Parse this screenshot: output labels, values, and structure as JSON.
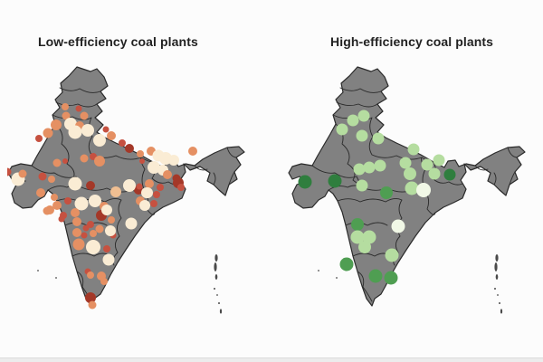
{
  "page": {
    "background_color": "#fcfcfc",
    "footer_strip_color": "#ececec"
  },
  "map_style": {
    "land_fill": "#818181",
    "border_color": "#2a2a2a",
    "region": "India with state boundaries, Andaman & Nicobar and Lakshadweep islands"
  },
  "palette": {
    "dr": "#a43828",
    "rd": "#c65140",
    "or": "#e59063",
    "pe": "#f0bf92",
    "cr": "#faecd4",
    "dg": "#2f7e3e",
    "mg": "#4f9e52",
    "lg": "#b5dda0",
    "wg": "#f1f8e6"
  },
  "chart_data": {
    "type": "scatter",
    "subtype": "geographic-bubble-map",
    "region": "India",
    "legend": "none shown",
    "coordinate_note": "points are [x, y, radius, paletteKey] in each map's 290x320 local pixel space",
    "panels": [
      {
        "id": "low",
        "title": "Low-efficiency coal plants",
        "color_scale": "cream (low) to dark red (high), OrRd-style",
        "points": [
          [
            64,
            45,
            4,
            "or"
          ],
          [
            79,
            47,
            3.5,
            "rd"
          ],
          [
            65,
            55,
            4.5,
            "or"
          ],
          [
            85,
            55,
            4.5,
            "or"
          ],
          [
            54,
            65,
            6,
            "or"
          ],
          [
            70,
            64,
            7,
            "cr"
          ],
          [
            80,
            66,
            5,
            "or"
          ],
          [
            45,
            74,
            5.5,
            "or"
          ],
          [
            75,
            73,
            7.5,
            "cr"
          ],
          [
            89,
            71,
            7,
            "cr"
          ],
          [
            109,
            70,
            3.5,
            "rd"
          ],
          [
            115,
            77,
            5,
            "or"
          ],
          [
            35,
            80,
            4,
            "rd"
          ],
          [
            102,
            82,
            7,
            "cr"
          ],
          [
            127,
            85,
            4,
            "rd"
          ],
          [
            135,
            91,
            5,
            "dr"
          ],
          [
            147,
            97,
            4,
            "or"
          ],
          [
            159,
            94,
            5,
            "or"
          ],
          [
            167,
            99,
            6.5,
            "cr"
          ],
          [
            175,
            102,
            7,
            "cr"
          ],
          [
            184,
            104,
            6,
            "cr"
          ],
          [
            149,
            105,
            3,
            "rd"
          ],
          [
            162,
            112,
            7,
            "cr"
          ],
          [
            172,
            115,
            6,
            "cr"
          ],
          [
            177,
            120,
            5,
            "or"
          ],
          [
            187,
            124,
            4.5,
            "dr"
          ],
          [
            189,
            129,
            6,
            "dr"
          ],
          [
            192,
            134,
            4,
            "rd"
          ],
          [
            157,
            130,
            5,
            "or"
          ],
          [
            145,
            137,
            5,
            "dr"
          ],
          [
            154,
            140,
            6,
            "cr"
          ],
          [
            165,
            142,
            4,
            "rd"
          ],
          [
            147,
            149,
            5,
            "or"
          ],
          [
            152,
            154,
            6,
            "cr"
          ],
          [
            162,
            152,
            4,
            "rd"
          ],
          [
            205,
            94,
            5,
            "or"
          ],
          [
            0,
            117,
            4.5,
            "rd"
          ],
          [
            12,
            125,
            7.5,
            "cr"
          ],
          [
            17,
            119,
            4.5,
            "or"
          ],
          [
            39,
            122,
            4.5,
            "rd"
          ],
          [
            49,
            125,
            4,
            "or"
          ],
          [
            55,
            107,
            4.5,
            "or"
          ],
          [
            64,
            105,
            3,
            "rd"
          ],
          [
            85,
            102,
            4.5,
            "or"
          ],
          [
            95,
            100,
            4,
            "rd"
          ],
          [
            102,
            105,
            6,
            "or"
          ],
          [
            75,
            130,
            7.5,
            "cr"
          ],
          [
            92,
            132,
            5,
            "dr"
          ],
          [
            37,
            140,
            5,
            "or"
          ],
          [
            52,
            145,
            4,
            "or"
          ],
          [
            67,
            149,
            4,
            "rd"
          ],
          [
            82,
            152,
            7.5,
            "cr"
          ],
          [
            97,
            149,
            7,
            "cr"
          ],
          [
            107,
            155,
            5,
            "or"
          ],
          [
            47,
            159,
            5,
            "or"
          ],
          [
            62,
            165,
            4,
            "rd"
          ],
          [
            77,
            172,
            5,
            "or"
          ],
          [
            92,
            175,
            4,
            "rd"
          ],
          [
            104,
            165,
            6,
            "dr"
          ],
          [
            110,
            159,
            6,
            "cr"
          ],
          [
            115,
            170,
            4,
            "or"
          ],
          [
            135,
            132,
            7,
            "cr"
          ],
          [
            146,
            133,
            3.5,
            "rd"
          ],
          [
            155,
            140,
            6,
            "cr"
          ],
          [
            169,
            134,
            4,
            "rd"
          ],
          [
            120,
            139,
            6,
            "pe"
          ],
          [
            137,
            174,
            6.5,
            "cr"
          ],
          [
            55,
            154,
            5,
            "or"
          ],
          [
            75,
            162,
            5,
            "or"
          ],
          [
            44,
            160,
            4.5,
            "or"
          ],
          [
            60,
            169,
            3.5,
            "rd"
          ],
          [
            85,
            187,
            3.5,
            "rd"
          ],
          [
            95,
            185,
            4,
            "or"
          ],
          [
            117,
            187,
            3.5,
            "rd"
          ],
          [
            77,
            184,
            5,
            "or"
          ],
          [
            87,
            179,
            3.5,
            "rd"
          ],
          [
            102,
            180,
            4.5,
            "or"
          ],
          [
            114,
            182,
            6,
            "cr"
          ],
          [
            79,
            197,
            6.5,
            "or"
          ],
          [
            95,
            200,
            8,
            "cr"
          ],
          [
            110,
            202,
            4,
            "rd"
          ],
          [
            112,
            214,
            6.5,
            "cr"
          ],
          [
            89,
            227,
            3.5,
            "rd"
          ],
          [
            92,
            231,
            4,
            "or"
          ],
          [
            104,
            232,
            5,
            "or"
          ],
          [
            107,
            238,
            4,
            "or"
          ],
          [
            92,
            256,
            6,
            "dr"
          ],
          [
            94,
            264,
            4.5,
            "or"
          ]
        ]
      },
      {
        "id": "high",
        "title": "High-efficiency coal plants",
        "color_scale": "near-white green (low) to dark green (high)",
        "points": [
          [
            72,
            60,
            6.5,
            "lg"
          ],
          [
            84,
            55,
            6.5,
            "lg"
          ],
          [
            60,
            70,
            6.5,
            "lg"
          ],
          [
            82,
            77,
            6.5,
            "lg"
          ],
          [
            100,
            80,
            6.5,
            "lg"
          ],
          [
            139,
            92,
            6.5,
            "lg"
          ],
          [
            130,
            107,
            6.5,
            "lg"
          ],
          [
            154,
            109,
            6.5,
            "lg"
          ],
          [
            167,
            104,
            6.5,
            "lg"
          ],
          [
            135,
            119,
            7,
            "lg"
          ],
          [
            162,
            119,
            6.5,
            "lg"
          ],
          [
            179,
            120,
            6.5,
            "dg"
          ],
          [
            137,
            135,
            7.5,
            "lg"
          ],
          [
            150,
            137,
            8,
            "wg"
          ],
          [
            19,
            128,
            7.5,
            "dg"
          ],
          [
            52,
            127,
            7.5,
            "dg"
          ],
          [
            79,
            114,
            6.5,
            "lg"
          ],
          [
            90,
            112,
            6.5,
            "lg"
          ],
          [
            102,
            110,
            6.5,
            "lg"
          ],
          [
            82,
            132,
            6.5,
            "lg"
          ],
          [
            109,
            140,
            7,
            "mg"
          ],
          [
            122,
            177,
            7.5,
            "wg"
          ],
          [
            77,
            175,
            7,
            "mg"
          ],
          [
            77,
            189,
            7.5,
            "lg"
          ],
          [
            90,
            189,
            7.5,
            "lg"
          ],
          [
            85,
            200,
            7,
            "lg"
          ],
          [
            115,
            209,
            7.5,
            "lg"
          ],
          [
            65,
            219,
            7.5,
            "mg"
          ],
          [
            97,
            232,
            7.5,
            "mg"
          ],
          [
            114,
            234,
            7.5,
            "mg"
          ]
        ]
      }
    ]
  }
}
